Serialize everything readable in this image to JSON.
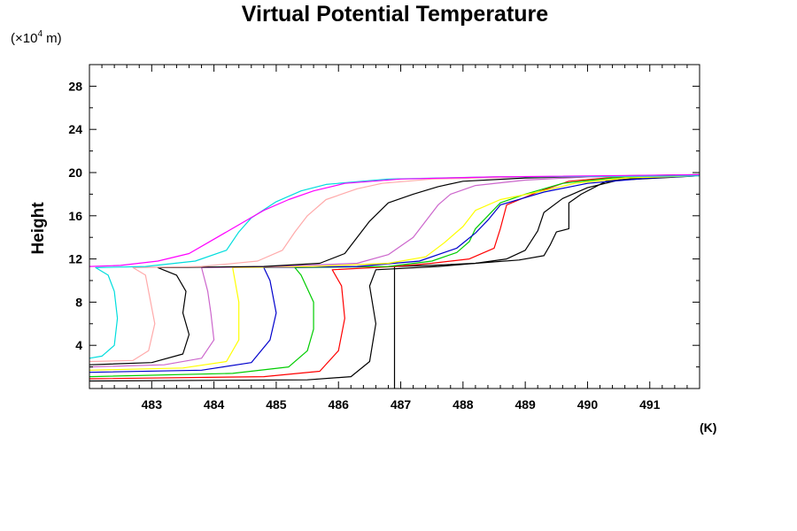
{
  "chart_data": {
    "type": "line",
    "title": "Virtual Potential Temperature",
    "ylabel": "Height",
    "yunit_prefix": "(×10",
    "yunit_exp": "4",
    "yunit_suffix": " m)",
    "xunit": "(K)",
    "xlim": [
      482,
      491.8
    ],
    "ylim": [
      0,
      30
    ],
    "xticks": [
      483,
      484,
      485,
      486,
      487,
      488,
      489,
      490,
      491
    ],
    "yticks": [
      4,
      8,
      12,
      16,
      20,
      24,
      28
    ],
    "xtick_labels": [
      "483",
      "484",
      "485",
      "486",
      "487",
      "488",
      "489",
      "490",
      "491"
    ],
    "ytick_labels": [
      "4",
      "8",
      "12",
      "16",
      "20",
      "24",
      "28"
    ],
    "grid": false,
    "legend": "none",
    "series": [
      {
        "color": "#000000",
        "points": [
          [
            486.9,
            0
          ],
          [
            486.9,
            11.3
          ],
          [
            487.5,
            11.4
          ],
          [
            488.2,
            11.6
          ],
          [
            488.9,
            11.9
          ],
          [
            489.3,
            12.3
          ],
          [
            489.4,
            13.3
          ],
          [
            489.5,
            14.5
          ],
          [
            489.7,
            14.8
          ],
          [
            489.7,
            17.2
          ],
          [
            489.9,
            18.0
          ],
          [
            490.3,
            19.2
          ],
          [
            491.0,
            19.6
          ],
          [
            491.8,
            19.7
          ]
        ]
      },
      {
        "color": "#000000",
        "points": [
          [
            482,
            0.7
          ],
          [
            485.5,
            0.8
          ],
          [
            486.2,
            1.1
          ],
          [
            486.5,
            2.5
          ],
          [
            486.6,
            6.0
          ],
          [
            486.5,
            9.5
          ],
          [
            486.6,
            11.0
          ],
          [
            487.6,
            11.3
          ],
          [
            488.2,
            11.6
          ],
          [
            488.7,
            12.0
          ],
          [
            489.0,
            12.8
          ],
          [
            489.2,
            14.6
          ],
          [
            489.3,
            16.3
          ],
          [
            489.6,
            17.6
          ],
          [
            490.0,
            18.6
          ],
          [
            490.5,
            19.3
          ],
          [
            491.8,
            19.7
          ]
        ]
      },
      {
        "color": "#ff0000",
        "points": [
          [
            482,
            0.9
          ],
          [
            484.8,
            1.1
          ],
          [
            485.7,
            1.6
          ],
          [
            486.0,
            3.5
          ],
          [
            486.1,
            6.5
          ],
          [
            486.05,
            9.5
          ],
          [
            485.9,
            11.0
          ],
          [
            486.9,
            11.3
          ],
          [
            487.5,
            11.6
          ],
          [
            488.1,
            12.0
          ],
          [
            488.5,
            13.0
          ],
          [
            488.6,
            14.8
          ],
          [
            488.7,
            17.0
          ],
          [
            489.2,
            18.2
          ],
          [
            489.7,
            19.2
          ],
          [
            490.5,
            19.6
          ],
          [
            491.8,
            19.7
          ]
        ]
      },
      {
        "color": "#00cc00",
        "points": [
          [
            482,
            1.1
          ],
          [
            484.3,
            1.4
          ],
          [
            485.2,
            2.0
          ],
          [
            485.5,
            3.5
          ],
          [
            485.6,
            5.5
          ],
          [
            485.6,
            8.0
          ],
          [
            485.4,
            10.5
          ],
          [
            485.3,
            11.2
          ],
          [
            486.8,
            11.3
          ],
          [
            487.5,
            11.8
          ],
          [
            487.9,
            12.6
          ],
          [
            488.1,
            13.6
          ],
          [
            488.2,
            14.8
          ],
          [
            488.4,
            16.0
          ],
          [
            488.6,
            17.2
          ],
          [
            489.0,
            18.0
          ],
          [
            489.6,
            19.0
          ],
          [
            490.4,
            19.5
          ],
          [
            491.8,
            19.7
          ]
        ]
      },
      {
        "color": "#0000cc",
        "points": [
          [
            482,
            1.5
          ],
          [
            483.8,
            1.7
          ],
          [
            484.6,
            2.4
          ],
          [
            484.9,
            4.5
          ],
          [
            485.0,
            7.0
          ],
          [
            484.9,
            10.0
          ],
          [
            484.8,
            11.2
          ],
          [
            486.3,
            11.3
          ],
          [
            487.3,
            11.8
          ],
          [
            487.9,
            13.0
          ],
          [
            488.2,
            14.4
          ],
          [
            488.4,
            15.6
          ],
          [
            488.6,
            17.0
          ],
          [
            489.3,
            18.2
          ],
          [
            490.0,
            19.0
          ],
          [
            491.0,
            19.5
          ],
          [
            491.8,
            19.7
          ]
        ]
      },
      {
        "color": "#ffff00",
        "points": [
          [
            482,
            1.7
          ],
          [
            483.5,
            1.9
          ],
          [
            484.2,
            2.5
          ],
          [
            484.4,
            4.5
          ],
          [
            484.4,
            8.0
          ],
          [
            484.3,
            11.2
          ],
          [
            485.6,
            11.3
          ],
          [
            486.8,
            11.6
          ],
          [
            487.4,
            12.2
          ],
          [
            487.7,
            13.5
          ],
          [
            488.0,
            15.0
          ],
          [
            488.2,
            16.5
          ],
          [
            488.6,
            17.5
          ],
          [
            489.2,
            18.2
          ],
          [
            489.8,
            19.0
          ],
          [
            490.6,
            19.5
          ],
          [
            491.8,
            19.7
          ]
        ]
      },
      {
        "color": "#cc66cc",
        "points": [
          [
            482,
            2.0
          ],
          [
            483.2,
            2.2
          ],
          [
            483.8,
            2.8
          ],
          [
            484.0,
            4.5
          ],
          [
            483.95,
            7.0
          ],
          [
            483.9,
            9.0
          ],
          [
            483.8,
            11.2
          ],
          [
            485.0,
            11.3
          ],
          [
            486.3,
            11.6
          ],
          [
            486.8,
            12.4
          ],
          [
            487.2,
            14.0
          ],
          [
            487.4,
            15.5
          ],
          [
            487.6,
            17.0
          ],
          [
            487.8,
            18.0
          ],
          [
            488.2,
            18.8
          ],
          [
            489.0,
            19.3
          ],
          [
            490.0,
            19.6
          ],
          [
            491.8,
            19.7
          ]
        ]
      },
      {
        "color": "#000000",
        "points": [
          [
            482,
            2.2
          ],
          [
            483.0,
            2.4
          ],
          [
            483.5,
            3.2
          ],
          [
            483.6,
            5.0
          ],
          [
            483.5,
            7.0
          ],
          [
            483.55,
            9.0
          ],
          [
            483.4,
            10.5
          ],
          [
            483.1,
            11.2
          ],
          [
            484.8,
            11.3
          ],
          [
            485.7,
            11.6
          ],
          [
            486.1,
            12.5
          ],
          [
            486.3,
            14.0
          ],
          [
            486.5,
            15.5
          ],
          [
            486.8,
            17.2
          ],
          [
            487.2,
            18.0
          ],
          [
            487.6,
            18.7
          ],
          [
            488.0,
            19.2
          ],
          [
            489.0,
            19.5
          ],
          [
            490.5,
            19.7
          ],
          [
            491.8,
            19.8
          ]
        ]
      },
      {
        "color": "#ffaaaa",
        "points": [
          [
            482,
            2.5
          ],
          [
            482.7,
            2.6
          ],
          [
            482.95,
            3.5
          ],
          [
            483.05,
            6.0
          ],
          [
            482.95,
            9.0
          ],
          [
            482.9,
            10.5
          ],
          [
            482.7,
            11.2
          ],
          [
            483.8,
            11.3
          ],
          [
            484.7,
            11.8
          ],
          [
            485.1,
            12.8
          ],
          [
            485.3,
            14.5
          ],
          [
            485.5,
            16.0
          ],
          [
            485.8,
            17.5
          ],
          [
            486.3,
            18.5
          ],
          [
            486.7,
            19.0
          ],
          [
            487.5,
            19.4
          ],
          [
            489.0,
            19.6
          ],
          [
            491.8,
            19.7
          ]
        ]
      },
      {
        "color": "#00dddd",
        "points": [
          [
            482,
            2.8
          ],
          [
            482.2,
            3.0
          ],
          [
            482.4,
            4.0
          ],
          [
            482.45,
            6.5
          ],
          [
            482.4,
            9.0
          ],
          [
            482.3,
            10.5
          ],
          [
            482.1,
            11.2
          ],
          [
            482.9,
            11.3
          ],
          [
            483.7,
            11.8
          ],
          [
            484.2,
            12.8
          ],
          [
            484.4,
            14.5
          ],
          [
            484.6,
            15.8
          ],
          [
            485.0,
            17.3
          ],
          [
            485.4,
            18.3
          ],
          [
            485.8,
            18.9
          ],
          [
            486.8,
            19.4
          ],
          [
            488.5,
            19.6
          ],
          [
            491.8,
            19.7
          ]
        ]
      },
      {
        "color": "#ff00ff",
        "points": [
          [
            482,
            11.3
          ],
          [
            482.5,
            11.4
          ],
          [
            483.1,
            11.8
          ],
          [
            483.6,
            12.5
          ],
          [
            483.9,
            13.5
          ],
          [
            484.2,
            14.5
          ],
          [
            484.5,
            15.5
          ],
          [
            484.8,
            16.5
          ],
          [
            485.2,
            17.5
          ],
          [
            485.6,
            18.3
          ],
          [
            486.1,
            19.0
          ],
          [
            487.0,
            19.4
          ],
          [
            488.5,
            19.6
          ],
          [
            491.8,
            19.8
          ]
        ]
      }
    ]
  }
}
